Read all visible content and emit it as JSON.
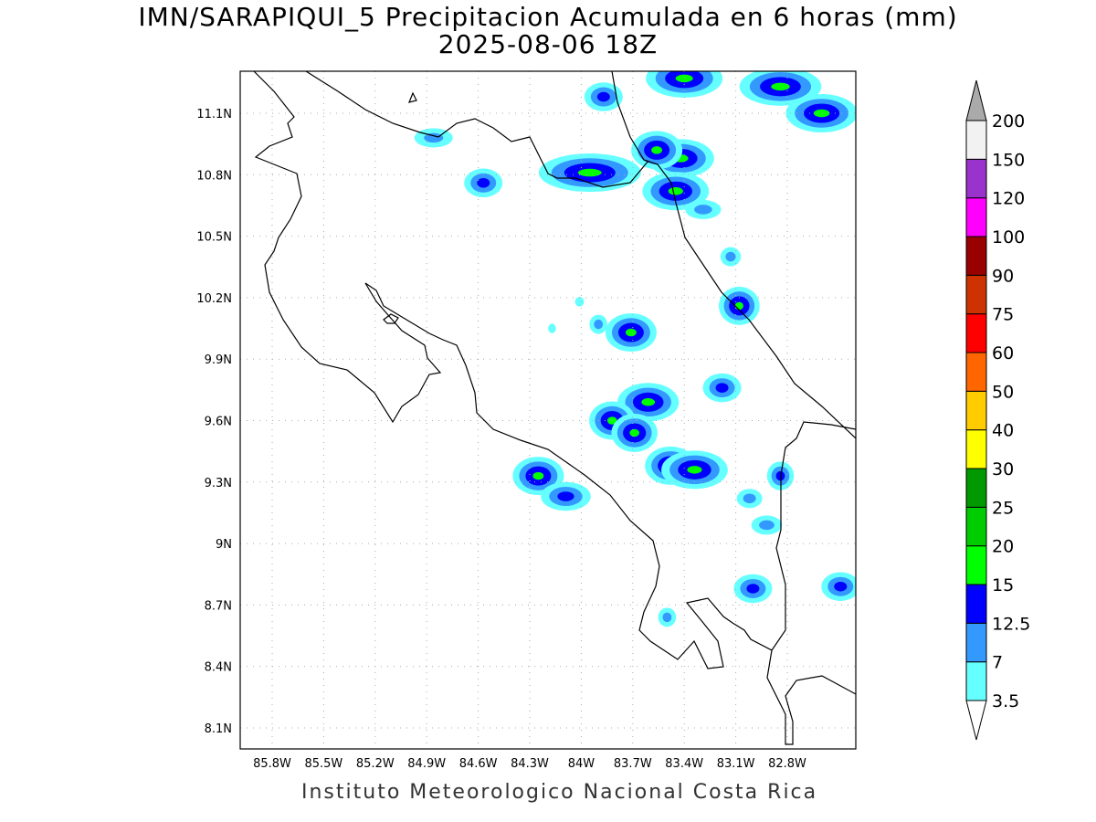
{
  "header": {
    "title": "IMN/SARAPIQUI_5 Precipitacion Acumulada en 6 horas (mm)",
    "subtitle": "2025-08-06 18Z"
  },
  "footer": "Instituto Meteorologico Nacional Costa Rica",
  "map": {
    "lon_ticks": [
      "85.8W",
      "85.5W",
      "85.2W",
      "84.9W",
      "84.6W",
      "84.3W",
      "84W",
      "83.7W",
      "83.4W",
      "83.1W",
      "82.8W"
    ],
    "lon_values": [
      85.8,
      85.5,
      85.2,
      84.9,
      84.6,
      84.3,
      84.0,
      83.7,
      83.4,
      83.1,
      82.8
    ],
    "lat_ticks": [
      "11.1N",
      "10.8N",
      "10.5N",
      "10.2N",
      "9.9N",
      "9.6N",
      "9.3N",
      "9N",
      "8.7N",
      "8.4N",
      "8.1N"
    ],
    "lat_values": [
      11.1,
      10.8,
      10.5,
      10.2,
      9.9,
      9.6,
      9.3,
      9.0,
      8.7,
      8.4,
      8.1
    ],
    "rain_cells": [
      {
        "lon": 83.95,
        "lat": 10.81,
        "peak": 3,
        "elong": 2.0
      },
      {
        "lon": 83.42,
        "lat": 10.88,
        "peak": 3,
        "elong": 1.3
      },
      {
        "lon": 83.56,
        "lat": 10.92,
        "peak": 3,
        "elong": 1.0
      },
      {
        "lon": 83.45,
        "lat": 10.72,
        "peak": 3,
        "elong": 1.3
      },
      {
        "lon": 82.84,
        "lat": 11.23,
        "peak": 3,
        "elong": 1.6
      },
      {
        "lon": 82.6,
        "lat": 11.1,
        "peak": 3,
        "elong": 1.4
      },
      {
        "lon": 83.4,
        "lat": 11.27,
        "peak": 3,
        "elong": 1.5
      },
      {
        "lon": 83.87,
        "lat": 11.18,
        "peak": 2,
        "elong": 1.0
      },
      {
        "lon": 84.86,
        "lat": 10.98,
        "peak": 1,
        "elong": 1.5
      },
      {
        "lon": 84.57,
        "lat": 10.76,
        "peak": 2,
        "elong": 1.0
      },
      {
        "lon": 83.08,
        "lat": 10.16,
        "peak": 3,
        "elong": 0.8
      },
      {
        "lon": 83.71,
        "lat": 10.03,
        "peak": 3,
        "elong": 1.0
      },
      {
        "lon": 83.61,
        "lat": 9.69,
        "peak": 3,
        "elong": 1.2
      },
      {
        "lon": 83.82,
        "lat": 9.6,
        "peak": 3,
        "elong": 0.9
      },
      {
        "lon": 83.69,
        "lat": 9.54,
        "peak": 3,
        "elong": 0.9
      },
      {
        "lon": 83.48,
        "lat": 9.38,
        "peak": 3,
        "elong": 1.0
      },
      {
        "lon": 83.34,
        "lat": 9.36,
        "peak": 3,
        "elong": 1.3
      },
      {
        "lon": 84.25,
        "lat": 9.33,
        "peak": 3,
        "elong": 1.0
      },
      {
        "lon": 84.09,
        "lat": 9.23,
        "peak": 2,
        "elong": 1.3
      },
      {
        "lon": 83.18,
        "lat": 9.76,
        "peak": 2,
        "elong": 1.0
      },
      {
        "lon": 83.02,
        "lat": 9.22,
        "peak": 1,
        "elong": 1.0
      },
      {
        "lon": 83.13,
        "lat": 10.4,
        "peak": 1,
        "elong": 0.8
      },
      {
        "lon": 83.29,
        "lat": 10.63,
        "peak": 1,
        "elong": 1.4
      },
      {
        "lon": 82.92,
        "lat": 9.09,
        "peak": 1,
        "elong": 1.2
      },
      {
        "lon": 82.84,
        "lat": 9.33,
        "peak": 2,
        "elong": 0.7
      },
      {
        "lon": 82.49,
        "lat": 8.79,
        "peak": 2,
        "elong": 1.0
      },
      {
        "lon": 83.0,
        "lat": 8.78,
        "peak": 2,
        "elong": 1.0
      },
      {
        "lon": 83.5,
        "lat": 8.64,
        "peak": 1,
        "elong": 0.7
      },
      {
        "lon": 84.17,
        "lat": 10.05,
        "peak": 0,
        "elong": 0.6
      },
      {
        "lon": 83.9,
        "lat": 10.07,
        "peak": 1,
        "elong": 0.7
      },
      {
        "lon": 84.01,
        "lat": 10.18,
        "peak": 0,
        "elong": 0.7
      }
    ]
  },
  "colorbar": {
    "labels": [
      "3.5",
      "7",
      "12.5",
      "15",
      "20",
      "25",
      "30",
      "40",
      "50",
      "60",
      "75",
      "90",
      "100",
      "120",
      "150",
      "200"
    ],
    "colors": [
      "#66ffff",
      "#3399ff",
      "#0000ff",
      "#00ff00",
      "#00cc00",
      "#009900",
      "#ffff00",
      "#ffcc00",
      "#ff6600",
      "#ff0000",
      "#cc3300",
      "#990000",
      "#ff00ff",
      "#9933cc",
      "#f2f2f2"
    ],
    "over_color": "#aaaaaa",
    "under_color": "#ffffff"
  }
}
